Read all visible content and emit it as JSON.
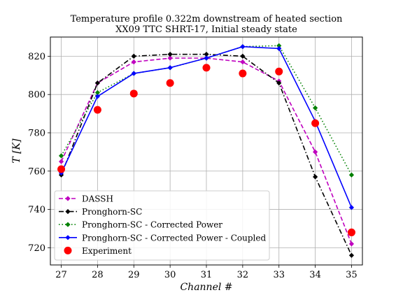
{
  "chart_data": {
    "type": "line",
    "title": "Temperature profile 0.322m downstream of heated section",
    "subtitle": "XX09 TTC SHRT-17, Initial steady state",
    "xlabel": "Channel #",
    "ylabel": "T [K]",
    "xlim": [
      26.7,
      35.3
    ],
    "ylim": [
      711,
      830
    ],
    "xticks": [
      27,
      28,
      29,
      30,
      31,
      32,
      33,
      34,
      35
    ],
    "yticks": [
      720,
      740,
      760,
      780,
      800,
      820
    ],
    "grid": true,
    "legend_position": "lower-left",
    "x": [
      27,
      28,
      29,
      30,
      31,
      32,
      33,
      34,
      35
    ],
    "series": [
      {
        "name": "DASSH",
        "color": "#bf00bf",
        "linestyle": "dashed",
        "marker": "diamond",
        "values": [
          765,
          806,
          817,
          819,
          819,
          817,
          807,
          770,
          722
        ]
      },
      {
        "name": "Pronghorn-SC",
        "color": "#000000",
        "linestyle": "dashdot",
        "marker": "diamond",
        "values": [
          758,
          806,
          820,
          821,
          821,
          820,
          806,
          757,
          716
        ]
      },
      {
        "name": "Pronghorn-SC - Corrected Power",
        "color": "#008000",
        "linestyle": "dotted",
        "marker": "diamond",
        "values": [
          768,
          801,
          811,
          814,
          819,
          825,
          825.5,
          793,
          758
        ]
      },
      {
        "name": "Pronghorn-SC - Corrected Power - Coupled",
        "color": "#0000ff",
        "linestyle": "solid",
        "marker": "diamond",
        "values": [
          759,
          799,
          811,
          814,
          819,
          825,
          824,
          786,
          741
        ]
      },
      {
        "name": "Experiment",
        "color": "#ff0000",
        "linestyle": "none",
        "marker": "circle",
        "values": [
          761,
          792,
          800.5,
          806,
          814,
          811,
          812,
          785,
          728
        ]
      }
    ]
  }
}
